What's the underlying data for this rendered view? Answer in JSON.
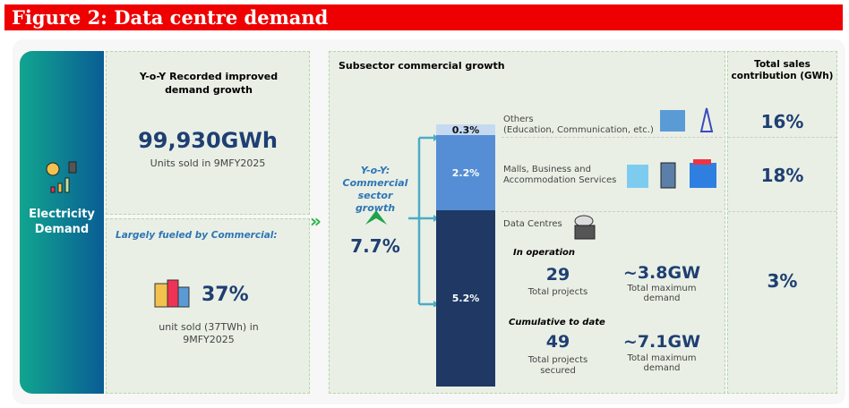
{
  "title": "Figure 2: Data centre demand",
  "left": {
    "label": "Electricity Demand"
  },
  "card1": {
    "heading": "Y-o-Y Recorded improved demand growth",
    "value": "99,930GWh",
    "sub": "Units sold in 9MFY2025"
  },
  "card2": {
    "heading": "Largely fueled by Commercial:",
    "value": "37%",
    "sub": "unit sold (37TWh) in 9MFY2025"
  },
  "middle": {
    "heading": "Subsector commercial growth",
    "yoy_label": "Y-o-Y: Commercial sector growth",
    "yoy_value": "7.7%",
    "segments": [
      {
        "value": "0.3%",
        "color": "#c5d9f1"
      },
      {
        "value": "2.2%",
        "color": "#558ed5"
      },
      {
        "value": "5.2%",
        "color": "#1f3864"
      }
    ],
    "others": "Others",
    "others_sub": "(Education, Communication, etc.)",
    "malls": "Malls, Business and Accommodation Services",
    "dc": "Data Centres",
    "in_op": "In operation",
    "op_projects": "29",
    "op_projects_lbl": "Total projects",
    "op_demand": "~3.8GW",
    "op_demand_lbl": "Total maximum demand",
    "cum": "Cumulative to date",
    "cum_projects": "49",
    "cum_projects_lbl": "Total projects secured",
    "cum_demand": "~7.1GW",
    "cum_demand_lbl": "Total maximum demand"
  },
  "right": {
    "heading": "Total sales contribution (GWh)",
    "values": [
      "16%",
      "18%",
      "3%"
    ]
  }
}
